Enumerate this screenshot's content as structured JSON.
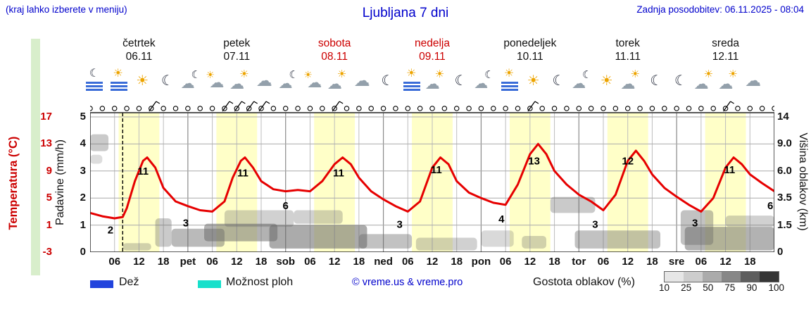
{
  "header": {
    "hint": "(kraj lahko izberete v meniju)",
    "title": "Ljubljana 7 dni",
    "updated": "Zadnja posodobitev: 06.11.2025 - 08:04"
  },
  "days": [
    {
      "name": "četrtek",
      "date": "06.11",
      "weekend": false
    },
    {
      "name": "petek",
      "date": "07.11",
      "weekend": false
    },
    {
      "name": "sobota",
      "date": "08.11",
      "weekend": true
    },
    {
      "name": "nedelja",
      "date": "09.11",
      "weekend": true
    },
    {
      "name": "ponedeljek",
      "date": "10.11",
      "weekend": false
    },
    {
      "name": "torek",
      "date": "11.11",
      "weekend": false
    },
    {
      "name": "sreda",
      "date": "12.11",
      "weekend": false
    }
  ],
  "axes": {
    "temp_label": "Temperatura (°C)",
    "temp_ticks": [
      "17",
      "13",
      "9",
      "5",
      "1",
      "-3"
    ],
    "precip_label": "Padavine (mm/h)",
    "precip_ticks": [
      "5",
      "4",
      "3",
      "2",
      "1",
      "0"
    ],
    "cloud_label": "Višina oblakov (km)",
    "cloud_ticks": [
      "14",
      "9.0",
      "6.0",
      "3.5",
      "1.5",
      "0"
    ],
    "x_ticks": [
      "06",
      "12",
      "18",
      "pet",
      "06",
      "12",
      "18",
      "sob",
      "06",
      "12",
      "18",
      "ned",
      "06",
      "12",
      "18",
      "pon",
      "06",
      "12",
      "18",
      "tor",
      "06",
      "12",
      "18",
      "sre",
      "06",
      "12",
      "18"
    ]
  },
  "legend": {
    "rain": "Dež",
    "showers": "Možnost ploh",
    "copyright": "© vreme.us & vreme.pro",
    "cloud_density": "Gostota oblakov (%)",
    "density_ticks": [
      "10",
      "25",
      "50",
      "75",
      "90",
      "100"
    ],
    "rain_color": "#2244dd",
    "showers_color": "#17e0cb"
  },
  "chart_data": {
    "type": "line",
    "title": "Ljubljana 7 dni",
    "x_unit": "hours from 06.11 00:00",
    "x_range": [
      0,
      168
    ],
    "temp_axis": {
      "label": "Temperatura (°C)",
      "range": [
        -3,
        17.7
      ]
    },
    "precip_axis": {
      "label": "Padavine (mm/h)",
      "range": [
        0,
        5.15
      ]
    },
    "cloud_axis": {
      "label": "Višina oblakov (km)",
      "stops_km": [
        0,
        1.5,
        3.5,
        6.0,
        9.0,
        14
      ]
    },
    "now_h": 8,
    "colors": {
      "curve": "#e60000",
      "cloud": "#666666",
      "day_band": "#ffffc8",
      "now_line": "#000000"
    },
    "series": [
      {
        "name": "Temperatura",
        "points": [
          [
            0,
            2.8
          ],
          [
            3,
            2.3
          ],
          [
            6,
            2.0
          ],
          [
            8,
            2.2
          ],
          [
            9,
            3.5
          ],
          [
            11,
            7.5
          ],
          [
            13,
            10.5
          ],
          [
            14,
            11
          ],
          [
            16,
            9.5
          ],
          [
            18,
            6.5
          ],
          [
            21,
            4.5
          ],
          [
            24,
            3.8
          ],
          [
            27,
            3.2
          ],
          [
            30,
            3.0
          ],
          [
            33,
            4.5
          ],
          [
            35,
            8
          ],
          [
            37,
            10.5
          ],
          [
            38,
            11
          ],
          [
            40,
            9.5
          ],
          [
            42,
            7.5
          ],
          [
            45,
            6.3
          ],
          [
            48,
            6.0
          ],
          [
            51,
            6.2
          ],
          [
            54,
            6.0
          ],
          [
            57,
            7.5
          ],
          [
            60,
            10
          ],
          [
            62,
            11
          ],
          [
            64,
            10
          ],
          [
            66,
            8
          ],
          [
            69,
            6
          ],
          [
            72,
            4.8
          ],
          [
            75,
            3.8
          ],
          [
            78,
            3.0
          ],
          [
            81,
            4.5
          ],
          [
            84,
            9.5
          ],
          [
            86,
            11
          ],
          [
            88,
            10
          ],
          [
            90,
            7.5
          ],
          [
            93,
            5.8
          ],
          [
            96,
            5.0
          ],
          [
            99,
            4.3
          ],
          [
            102,
            4.0
          ],
          [
            105,
            7
          ],
          [
            108,
            11.5
          ],
          [
            110,
            13
          ],
          [
            112,
            11.5
          ],
          [
            114,
            9
          ],
          [
            117,
            7
          ],
          [
            120,
            5.5
          ],
          [
            123,
            4.5
          ],
          [
            126,
            3.2
          ],
          [
            129,
            5.5
          ],
          [
            132,
            10.5
          ],
          [
            134,
            12
          ],
          [
            136,
            10.5
          ],
          [
            138,
            8.5
          ],
          [
            141,
            6.5
          ],
          [
            144,
            5.2
          ],
          [
            147,
            4.0
          ],
          [
            150,
            3.0
          ],
          [
            153,
            5
          ],
          [
            156,
            9.5
          ],
          [
            158,
            11
          ],
          [
            160,
            10
          ],
          [
            162,
            8.5
          ],
          [
            165,
            7.2
          ],
          [
            168,
            6.0
          ]
        ]
      }
    ],
    "point_labels": [
      [
        5,
        0.3,
        "2"
      ],
      [
        13,
        9,
        "11"
      ],
      [
        23.5,
        1.3,
        "3"
      ],
      [
        37.5,
        8.7,
        "11"
      ],
      [
        48,
        3.9,
        "6"
      ],
      [
        61,
        8.7,
        "11"
      ],
      [
        76,
        1.1,
        "3"
      ],
      [
        85,
        9.2,
        "11"
      ],
      [
        101,
        1.9,
        "4"
      ],
      [
        109,
        10.5,
        "13"
      ],
      [
        124,
        1.1,
        "3"
      ],
      [
        132,
        10.5,
        "12"
      ],
      [
        148.5,
        1.3,
        "3"
      ],
      [
        157,
        9.2,
        "11"
      ],
      [
        167,
        3.9,
        "6"
      ]
    ],
    "day_band_hours": [
      7,
      17
    ],
    "clouds": [
      [
        0,
        4.5,
        8.2,
        10.8,
        0.35
      ],
      [
        0,
        3,
        6.8,
        7.8,
        0.22
      ],
      [
        8,
        15,
        0.1,
        0.5,
        0.3
      ],
      [
        16,
        20,
        0.3,
        2.0,
        0.35
      ],
      [
        20,
        33,
        0.3,
        1.3,
        0.45
      ],
      [
        28,
        46,
        0.6,
        1.6,
        0.5
      ],
      [
        33,
        50,
        1.4,
        2.6,
        0.3
      ],
      [
        44,
        68,
        0.2,
        1.5,
        0.55
      ],
      [
        50,
        62,
        1.6,
        2.6,
        0.3
      ],
      [
        66,
        79,
        0.2,
        1.0,
        0.4
      ],
      [
        80,
        95,
        0.1,
        0.8,
        0.3
      ],
      [
        96,
        104,
        0.3,
        1.2,
        0.25
      ],
      [
        106,
        112,
        0.2,
        0.9,
        0.3
      ],
      [
        113,
        124,
        2.4,
        3.6,
        0.35
      ],
      [
        119,
        140,
        0.2,
        1.2,
        0.4
      ],
      [
        145,
        153,
        0.4,
        2.6,
        0.4
      ],
      [
        146,
        168,
        0.1,
        1.4,
        0.5
      ],
      [
        156,
        168,
        1.4,
        2.2,
        0.3
      ]
    ],
    "wind": {
      "interval_h": 3,
      "barb_idx": [
        5,
        11,
        12,
        13,
        14,
        20,
        36,
        52
      ]
    },
    "icons": [
      [
        1,
        "moon-fog"
      ],
      [
        7,
        "fog-sun"
      ],
      [
        13,
        "sun"
      ],
      [
        19,
        "moon"
      ],
      [
        25,
        "moon-cloud"
      ],
      [
        31,
        "cloud-sun"
      ],
      [
        37,
        "sun-cloud"
      ],
      [
        43,
        "cloud"
      ],
      [
        49,
        "moon-cloud"
      ],
      [
        55,
        "cloud-sun"
      ],
      [
        61,
        "sun-cloud"
      ],
      [
        67,
        "cloud"
      ],
      [
        73,
        "moon"
      ],
      [
        79,
        "fog-sun"
      ],
      [
        85,
        "sun-cloud"
      ],
      [
        91,
        "moon"
      ],
      [
        97,
        "moon-cloud"
      ],
      [
        103,
        "fog-sun"
      ],
      [
        109,
        "sun"
      ],
      [
        115,
        "moon"
      ],
      [
        121,
        "moon-cloud"
      ],
      [
        127,
        "sun"
      ],
      [
        133,
        "sun-cloud"
      ],
      [
        139,
        "moon"
      ],
      [
        145,
        "moon"
      ],
      [
        151,
        "sun-cloud"
      ],
      [
        157,
        "sun-cloud"
      ],
      [
        163,
        "cloud"
      ]
    ]
  }
}
